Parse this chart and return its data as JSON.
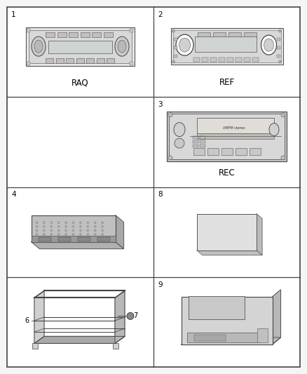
{
  "bg_color": "#f5f5f5",
  "grid_color": "#333333",
  "num_rows": 4,
  "num_cols": 2,
  "line_width": 1.0,
  "cells": [
    {
      "row": 0,
      "col": 0,
      "num": "1",
      "name": "RAQ"
    },
    {
      "row": 0,
      "col": 1,
      "num": "2",
      "name": "REF"
    },
    {
      "row": 1,
      "col": 0,
      "num": "",
      "name": ""
    },
    {
      "row": 1,
      "col": 1,
      "num": "3",
      "name": "REC"
    },
    {
      "row": 2,
      "col": 0,
      "num": "4",
      "name": ""
    },
    {
      "row": 2,
      "col": 1,
      "num": "8",
      "name": ""
    },
    {
      "row": 3,
      "col": 0,
      "num": "",
      "name": ""
    },
    {
      "row": 3,
      "col": 1,
      "num": "9",
      "name": ""
    }
  ]
}
